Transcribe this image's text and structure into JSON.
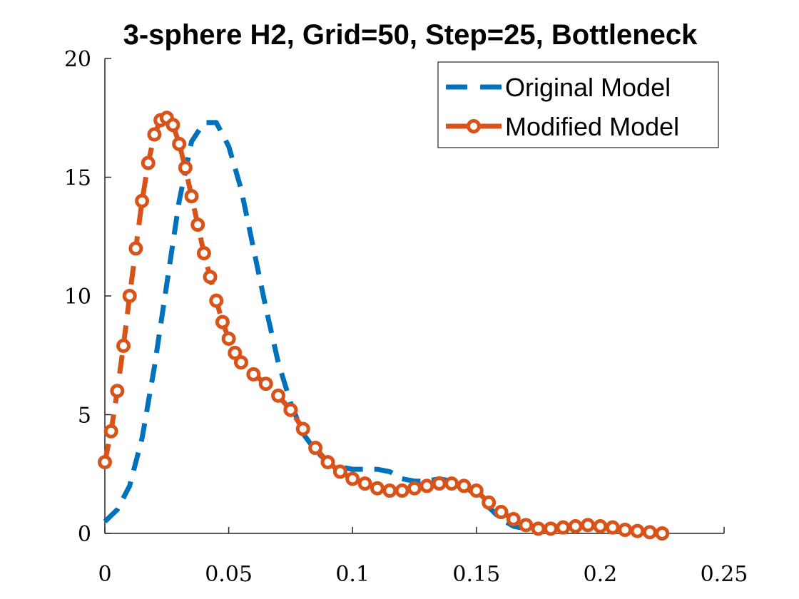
{
  "chart_data": {
    "type": "line",
    "title": "3-sphere H2, Grid=50, Step=25, Bottleneck",
    "xlabel": "",
    "ylabel": "",
    "xlim": [
      0,
      0.25
    ],
    "ylim": [
      0,
      20
    ],
    "x_ticks": [
      "0",
      "0.05",
      "0.1",
      "0.15",
      "0.2",
      "0.25"
    ],
    "y_ticks": [
      "0",
      "5",
      "10",
      "15",
      "20"
    ],
    "x_tick_values": [
      0,
      0.05,
      0.1,
      0.15,
      0.2,
      0.25
    ],
    "y_tick_values": [
      0,
      5,
      10,
      15,
      20
    ],
    "grid": false,
    "legend_position": "top-right",
    "series": [
      {
        "name": "Original Model",
        "color": "#0072BD",
        "style": "dashed",
        "marker": "none",
        "x": [
          0,
          0.005,
          0.01,
          0.015,
          0.02,
          0.025,
          0.03,
          0.035,
          0.04,
          0.045,
          0.05,
          0.055,
          0.06,
          0.065,
          0.07,
          0.075,
          0.08,
          0.085,
          0.09,
          0.095,
          0.1,
          0.105,
          0.11,
          0.115,
          0.12,
          0.125,
          0.13,
          0.135,
          0.14,
          0.145,
          0.15,
          0.155,
          0.16,
          0.165,
          0.17,
          0.175,
          0.18,
          0.185,
          0.19,
          0.195,
          0.2,
          0.205,
          0.21,
          0.215,
          0.22,
          0.225
        ],
        "y": [
          0.5,
          1.0,
          2.0,
          4.0,
          7.0,
          10.5,
          14.0,
          16.5,
          17.3,
          17.3,
          16.3,
          14.5,
          12.0,
          9.5,
          7.2,
          5.5,
          4.2,
          3.5,
          3.0,
          2.8,
          2.7,
          2.7,
          2.7,
          2.6,
          2.3,
          2.2,
          2.2,
          2.3,
          2.2,
          2.0,
          1.6,
          1.1,
          0.6,
          0.3,
          0.2,
          0.2,
          0.25,
          0.3,
          0.35,
          0.3,
          0.25,
          0.2,
          0.15,
          0.1,
          0.05,
          0.0
        ]
      },
      {
        "name": "Modified Model",
        "color": "#D95319",
        "style": "dashed",
        "marker": "circle",
        "x": [
          0,
          0.0025,
          0.005,
          0.0075,
          0.01,
          0.0125,
          0.015,
          0.0175,
          0.02,
          0.0225,
          0.025,
          0.0275,
          0.03,
          0.0325,
          0.035,
          0.0375,
          0.04,
          0.0425,
          0.045,
          0.0475,
          0.05,
          0.0525,
          0.055,
          0.06,
          0.065,
          0.07,
          0.075,
          0.08,
          0.085,
          0.09,
          0.095,
          0.1,
          0.105,
          0.11,
          0.115,
          0.12,
          0.125,
          0.13,
          0.135,
          0.14,
          0.145,
          0.15,
          0.155,
          0.16,
          0.165,
          0.17,
          0.175,
          0.18,
          0.185,
          0.19,
          0.195,
          0.2,
          0.205,
          0.21,
          0.215,
          0.22,
          0.225
        ],
        "y": [
          3.0,
          4.3,
          6.0,
          7.9,
          10.0,
          12.0,
          14.0,
          15.6,
          16.8,
          17.4,
          17.5,
          17.2,
          16.4,
          15.4,
          14.2,
          13.0,
          11.8,
          10.8,
          9.8,
          8.9,
          8.2,
          7.6,
          7.2,
          6.7,
          6.3,
          5.8,
          5.2,
          4.4,
          3.6,
          3.0,
          2.6,
          2.3,
          2.1,
          1.9,
          1.8,
          1.8,
          1.9,
          2.0,
          2.1,
          2.1,
          2.0,
          1.8,
          1.3,
          0.9,
          0.6,
          0.35,
          0.2,
          0.2,
          0.25,
          0.3,
          0.35,
          0.3,
          0.25,
          0.15,
          0.1,
          0.05,
          0.0
        ]
      }
    ]
  }
}
